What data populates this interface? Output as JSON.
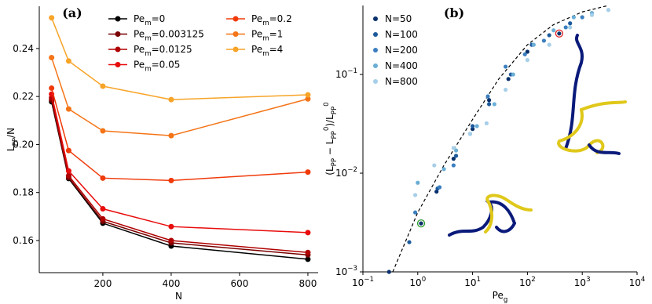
{
  "chart_data": [
    {
      "type": "line",
      "panel_label": "(a)",
      "x_label": "N",
      "y_label": "L_PP/N",
      "x": [
        50,
        100,
        200,
        400,
        800
      ],
      "xlim": [
        14,
        830
      ],
      "xticks": [
        200,
        400,
        600,
        800
      ],
      "ylim": [
        0.1466,
        0.2576
      ],
      "yticks": [
        0.16,
        0.18,
        {
          "value": 0.2,
          "label": "0.20"
        },
        0.22,
        0.24
      ],
      "series": [
        {
          "name": "Pe_m=0",
          "color": "#000000",
          "values": [
            0.2178,
            0.1858,
            0.1672,
            0.1577,
            0.1522
          ]
        },
        {
          "name": "Pe_m=0.003125",
          "color": "#7a0000",
          "values": [
            0.2185,
            0.1862,
            0.168,
            0.159,
            0.154
          ]
        },
        {
          "name": "Pe_m=0.0125",
          "color": "#b00000",
          "values": [
            0.2195,
            0.187,
            0.169,
            0.16,
            0.155
          ]
        },
        {
          "name": "Pe_m=0.05",
          "color": "#e80c0c",
          "values": [
            0.221,
            0.189,
            0.1732,
            0.1658,
            0.1633
          ]
        },
        {
          "name": "Pe_m=0.2",
          "color": "#f03a0a",
          "values": [
            0.2235,
            0.1975,
            0.186,
            0.185,
            0.1885
          ]
        },
        {
          "name": "Pe_m=1",
          "color": "#f47417",
          "values": [
            0.2362,
            0.2148,
            0.2057,
            0.2037,
            0.219
          ]
        },
        {
          "name": "Pe_m=4",
          "color": "#f7a428",
          "values": [
            0.2528,
            0.2348,
            0.2243,
            0.2187,
            0.2207
          ]
        }
      ]
    },
    {
      "type": "scatter",
      "panel_label": "(b)",
      "x_label": "Pe_g",
      "y_label": "(L_PP − L_PP^0)/L_PP^0",
      "xscale": "log",
      "yscale": "log",
      "xlim": [
        0.1,
        10000
      ],
      "ylim": [
        0.001,
        0.5
      ],
      "xticks": [
        {
          "value": 0.1,
          "label": "10^−1"
        },
        {
          "value": 1,
          "label": "10^0"
        },
        {
          "value": 10,
          "label": "10^1"
        },
        {
          "value": 100,
          "label": "10^2"
        },
        {
          "value": 1000,
          "label": "10^3"
        },
        {
          "value": 10000,
          "label": "10^4"
        }
      ],
      "yticks": [
        {
          "value": 0.001,
          "label": "10^−3"
        },
        {
          "value": 0.01,
          "label": "10^−2"
        },
        {
          "value": 0.1,
          "label": "10^−1"
        }
      ],
      "series": [
        {
          "name": "N=50",
          "color": "#08306b",
          "x": [
            0.3,
            1.15,
            2.2,
            4.5,
            10,
            20,
            45,
            100,
            380
          ],
          "values": [
            0.001,
            0.0031,
            0.0065,
            0.014,
            0.028,
            0.055,
            0.09,
            0.17,
            0.26
          ]
        },
        {
          "name": "N=100",
          "color": "#1c5a9c",
          "x": [
            0.7,
            2.3,
            5,
            10,
            20,
            50,
            120,
            250,
            600
          ],
          "values": [
            0.002,
            0.007,
            0.015,
            0.03,
            0.05,
            0.1,
            0.2,
            0.25,
            0.33
          ]
        },
        {
          "name": "N=200",
          "color": "#3b7fc0",
          "x": [
            0.9,
            2.5,
            4.5,
            9,
            19,
            40,
            90,
            200,
            500,
            1000
          ],
          "values": [
            0.004,
            0.0072,
            0.012,
            0.025,
            0.06,
            0.12,
            0.16,
            0.22,
            0.3,
            0.38
          ]
        },
        {
          "name": "N=400",
          "color": "#6aaed6",
          "x": [
            1.0,
            3,
            5,
            12,
            25,
            55,
            130,
            300,
            700,
            1500
          ],
          "values": [
            0.008,
            0.011,
            0.017,
            0.03,
            0.05,
            0.1,
            0.2,
            0.28,
            0.38,
            0.42
          ]
        },
        {
          "name": "N=800",
          "color": "#a6cfe8",
          "x": [
            0.9,
            2,
            4.5,
            9,
            18,
            40,
            100,
            250,
            600,
            1500,
            3000
          ],
          "values": [
            0.006,
            0.012,
            0.018,
            0.025,
            0.032,
            0.07,
            0.14,
            0.2,
            0.3,
            0.4,
            0.45
          ]
        }
      ],
      "curve": {
        "color": "#000000",
        "x": [
          0.35,
          1,
          3,
          10,
          30,
          100,
          300,
          1000,
          3000
        ],
        "values": [
          0.001,
          0.004,
          0.012,
          0.035,
          0.09,
          0.2,
          0.32,
          0.43,
          0.5
        ]
      }
    }
  ]
}
